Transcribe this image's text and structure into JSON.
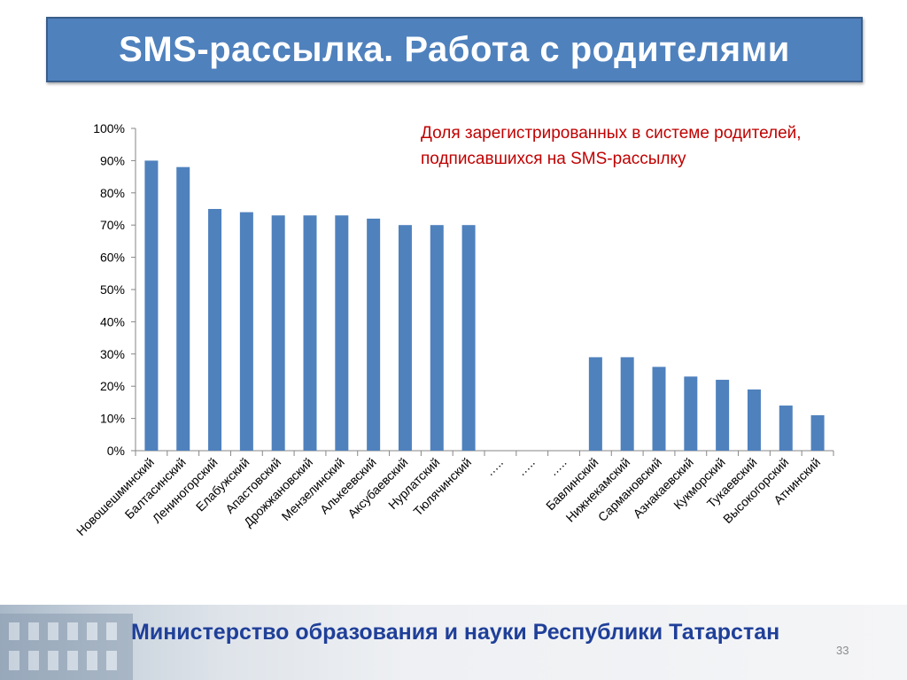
{
  "slide": {
    "title": "SMS-рассылка. Работа с родителями",
    "footer": "Министерство образования и науки Республики Татарстан",
    "page_number": "33"
  },
  "colors": {
    "title_bg": "#4f81bd",
    "bar": "#4f81bd",
    "annotation": "#c00000",
    "footer_text": "#1f3f99"
  },
  "chart_data": {
    "type": "bar",
    "title": "",
    "annotation_lines": [
      "Доля зарегистрированных в системе родителей,",
      "подписавшихся на SMS-рассылку"
    ],
    "categories": [
      "Новошешминский",
      "Балтасинский",
      "Лениногорский",
      "Елабужский",
      "Апастовский",
      "Дрожжановский",
      "Мензелинский",
      "Алькеевский",
      "Аксубаевский",
      "Нурлатский",
      "Тюлячинский",
      "…..",
      "…..",
      "…..",
      "Бавлинский",
      "Нижнекамский",
      "Сармановский",
      "Азнакаевский",
      "Кукморский",
      "Тукаевский",
      "Высокогорский",
      "Атнинский"
    ],
    "values": [
      0.9,
      0.88,
      0.75,
      0.74,
      0.73,
      0.73,
      0.73,
      0.72,
      0.7,
      0.7,
      0.7,
      null,
      null,
      null,
      0.29,
      0.29,
      0.26,
      0.23,
      0.22,
      0.19,
      0.14,
      0.11
    ],
    "y_ticks": [
      "0%",
      "10%",
      "20%",
      "30%",
      "40%",
      "50%",
      "60%",
      "70%",
      "80%",
      "90%",
      "100%"
    ],
    "ylim": [
      0,
      1
    ],
    "grid": false,
    "legend": "none"
  }
}
